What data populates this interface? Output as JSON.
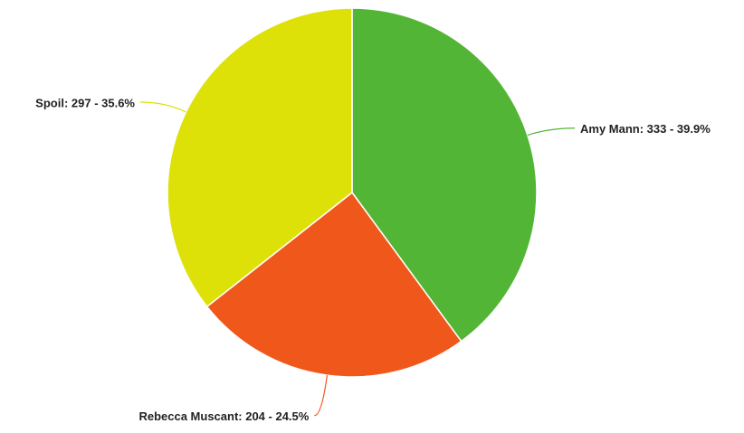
{
  "chart_data": {
    "type": "pie",
    "categories": [
      "Amy Mann",
      "Rebecca Muscant",
      "Spoil"
    ],
    "values": [
      333,
      204,
      297
    ],
    "value_labels": [
      "Amy Mann: 333 - 39.9%",
      "Rebecca Muscant: 204 - 24.5%",
      "Spoil: 297 - 35.6%"
    ],
    "colors": [
      "#53b535",
      "#f0581b",
      "#dde108"
    ]
  }
}
